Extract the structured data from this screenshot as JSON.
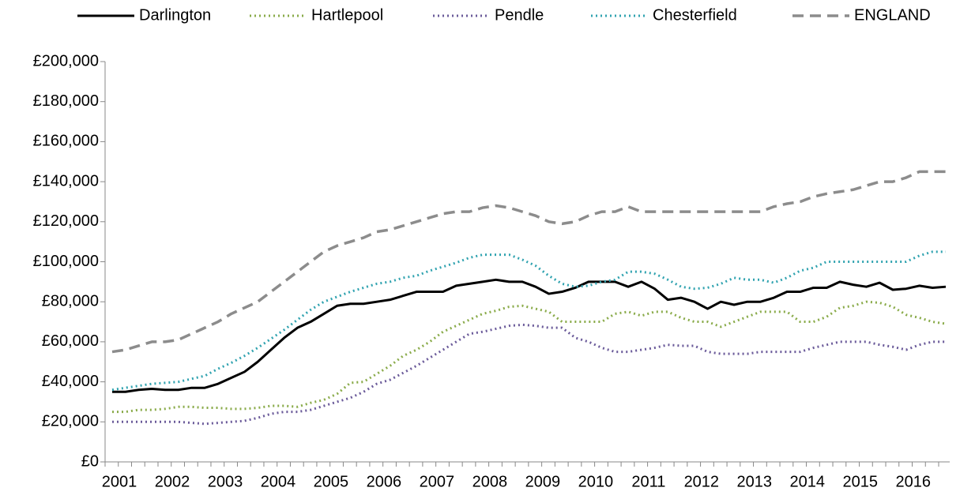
{
  "chart_data": {
    "type": "line",
    "categories": [
      "2001",
      null,
      null,
      null,
      "2002",
      null,
      null,
      null,
      "2003",
      null,
      null,
      null,
      "2004",
      null,
      null,
      null,
      "2005",
      null,
      null,
      null,
      "2006",
      null,
      null,
      null,
      "2007",
      null,
      null,
      null,
      "2008",
      null,
      null,
      null,
      "2009",
      null,
      null,
      null,
      "2010",
      null,
      null,
      null,
      "2011",
      null,
      null,
      null,
      "2012",
      null,
      null,
      null,
      "2013",
      null,
      null,
      null,
      "2014",
      null,
      null,
      null,
      "2015",
      null,
      null,
      null,
      "2016",
      null,
      null,
      null
    ],
    "ylim": [
      0,
      200000
    ],
    "yticks": [
      {
        "value": 0,
        "label": "£0"
      },
      {
        "value": 20000,
        "label": "£20,000"
      },
      {
        "value": 40000,
        "label": "£40,000"
      },
      {
        "value": 60000,
        "label": "£60,000"
      },
      {
        "value": 80000,
        "label": "£80,000"
      },
      {
        "value": 100000,
        "label": "£100,000"
      },
      {
        "value": 120000,
        "label": "£120,000"
      },
      {
        "value": 140000,
        "label": "£140,000"
      },
      {
        "value": 160000,
        "label": "£160,000"
      },
      {
        "value": 180000,
        "label": "£180,000"
      },
      {
        "value": 200000,
        "label": "£200,000"
      }
    ],
    "legend": "top",
    "series": [
      {
        "name": "Darlington",
        "color": "#000000",
        "style": "solid",
        "values": [
          35000,
          35000,
          36000,
          36500,
          36000,
          36000,
          37000,
          37000,
          39000,
          42000,
          45000,
          50000,
          56000,
          62000,
          67000,
          70000,
          74000,
          78000,
          79000,
          79000,
          80000,
          81000,
          83000,
          85000,
          85000,
          85000,
          88000,
          89000,
          90000,
          91000,
          90000,
          90000,
          87500,
          84000,
          85000,
          87000,
          90000,
          90000,
          90000,
          87500,
          90000,
          86500,
          81000,
          82000,
          80000,
          76500,
          80000,
          78500,
          80000,
          80000,
          82000,
          85000,
          85000,
          87000,
          87000,
          90000,
          88500,
          87500,
          89500,
          86000,
          86500,
          88000,
          87000,
          87500
        ]
      },
      {
        "name": "Hartlepool",
        "color": "#8aab4a",
        "style": "dotted",
        "values": [
          25000,
          25000,
          26000,
          26000,
          26500,
          27500,
          27500,
          27000,
          27000,
          26500,
          26500,
          27000,
          28000,
          28000,
          27500,
          29500,
          31000,
          34000,
          39500,
          40000,
          44000,
          48000,
          53000,
          56000,
          60000,
          65000,
          68000,
          71000,
          74000,
          75500,
          77500,
          78000,
          76500,
          75000,
          70000,
          70000,
          70000,
          70000,
          74000,
          75000,
          73000,
          75000,
          75000,
          72000,
          70000,
          70000,
          67500,
          70000,
          72500,
          75000,
          75000,
          75000,
          70000,
          70000,
          72500,
          77000,
          78000,
          80000,
          79500,
          77500,
          73500,
          72000,
          70000,
          69000
        ]
      },
      {
        "name": "Pendle",
        "color": "#6b5b9a",
        "style": "dotted",
        "values": [
          20000,
          20000,
          20000,
          20000,
          20000,
          20000,
          19500,
          19000,
          19500,
          20000,
          20500,
          22000,
          24000,
          25000,
          25000,
          26000,
          28000,
          30000,
          32000,
          35000,
          39000,
          41000,
          44500,
          48000,
          52000,
          56000,
          60000,
          64000,
          65000,
          66500,
          68000,
          68500,
          68000,
          67000,
          67000,
          62000,
          60000,
          57000,
          55000,
          55000,
          56000,
          57000,
          58500,
          58000,
          58000,
          55000,
          54000,
          54000,
          54000,
          55000,
          55000,
          55000,
          55000,
          57000,
          58500,
          60000,
          60000,
          60000,
          58500,
          57500,
          56000,
          58500,
          60000,
          60000
        ]
      },
      {
        "name": "Chesterfield",
        "color": "#31a3b0",
        "style": "dotted",
        "values": [
          36000,
          37000,
          38000,
          39000,
          39500,
          40000,
          41500,
          43000,
          46500,
          49500,
          53000,
          57000,
          61500,
          66000,
          71000,
          76000,
          80000,
          82500,
          85000,
          87000,
          89000,
          90000,
          92000,
          93000,
          95500,
          97500,
          99500,
          102000,
          103500,
          103500,
          103500,
          101000,
          98000,
          93000,
          89000,
          87500,
          88000,
          90000,
          91000,
          95000,
          95000,
          94000,
          91000,
          87500,
          86500,
          87000,
          89000,
          92000,
          91000,
          91000,
          89500,
          92000,
          95500,
          97000,
          100000,
          100000,
          100000,
          100000,
          100000,
          100000,
          100000,
          103000,
          105000,
          105000
        ]
      },
      {
        "name": "ENGLAND",
        "color": "#8c8c8c",
        "style": "dashed",
        "values": [
          55000,
          56000,
          58000,
          60000,
          60000,
          61000,
          64000,
          67000,
          70000,
          74000,
          77000,
          80000,
          85000,
          90000,
          95000,
          100000,
          105000,
          108000,
          110000,
          112000,
          115000,
          116000,
          118000,
          120000,
          122000,
          124000,
          125000,
          125000,
          127000,
          128000,
          127000,
          125000,
          123000,
          120000,
          119000,
          120000,
          123000,
          125000,
          125000,
          127500,
          125000,
          125000,
          125000,
          125000,
          125000,
          125000,
          125000,
          125000,
          125000,
          125000,
          127500,
          129000,
          130000,
          132500,
          134000,
          135000,
          136000,
          138000,
          140000,
          140000,
          142000,
          145000,
          145000,
          145000
        ]
      }
    ]
  }
}
